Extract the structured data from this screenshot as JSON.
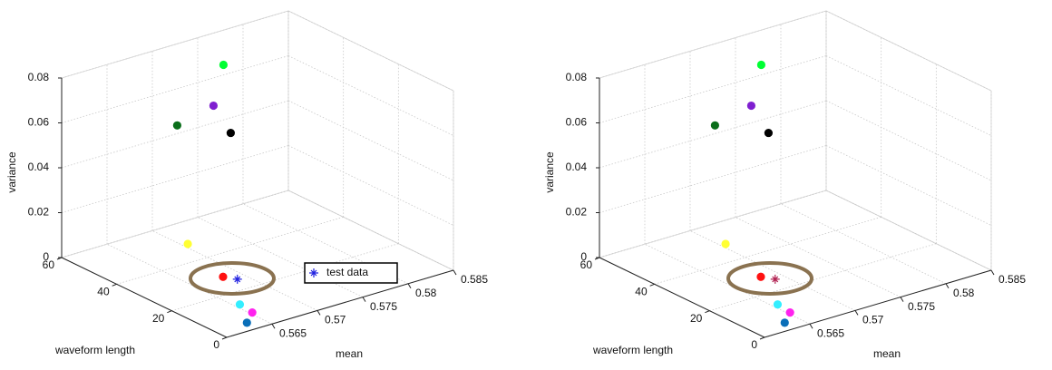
{
  "chart_data": [
    {
      "type": "scatter3d",
      "xlabel": "mean",
      "ylabel": "waveform length",
      "zlabel": "variance",
      "xlim": [
        0.56,
        0.585
      ],
      "xticks": [
        0.565,
        0.57,
        0.575,
        0.58,
        0.585
      ],
      "ylim": [
        0,
        60
      ],
      "yticks": [
        0,
        20,
        40,
        60
      ],
      "zlim": [
        0,
        0.08
      ],
      "zticks": [
        0,
        0.02,
        0.04,
        0.06,
        0.08
      ],
      "grid": true,
      "legend": "center right",
      "series": [
        {
          "marker": "circle",
          "colors": [
            "#00ff33",
            "#7f1fd0",
            "#0a6e1a",
            "#000000",
            "#ffff33",
            "#ff1111",
            "#33eeff",
            "#ff22ee",
            "#0a6eb8"
          ],
          "x": [
            0.5742,
            0.5731,
            0.5691,
            0.575,
            0.5696,
            0.5673,
            0.5646,
            0.5643,
            0.5625
          ],
          "y": [
            48,
            48,
            48,
            48,
            45.8,
            25.4,
            10.4,
            4.9,
            0.9
          ],
          "z": [
            0.076,
            0.0591,
            0.0551,
            0.0447,
            0.003,
            0.0032,
            0.003,
            0.003,
            0.003
          ]
        },
        {
          "name": "test data",
          "marker": "star",
          "color": "#2020e0",
          "x": [
            0.568
          ],
          "y": [
            22.5
          ],
          "z": [
            0.003
          ]
        }
      ]
    },
    {
      "type": "scatter3d",
      "xlabel": "mean",
      "ylabel": "waveform length",
      "zlabel": "variance",
      "xlim": [
        0.56,
        0.585
      ],
      "xticks": [
        0.565,
        0.57,
        0.575,
        0.58,
        0.585
      ],
      "ylim": [
        0,
        60
      ],
      "yticks": [
        0,
        20,
        40,
        60
      ],
      "zlim": [
        0,
        0.08
      ],
      "zticks": [
        0,
        0.02,
        0.04,
        0.06,
        0.08
      ],
      "grid": true,
      "series": [
        {
          "marker": "circle",
          "colors": [
            "#00ff33",
            "#7f1fd0",
            "#0a6e1a",
            "#000000",
            "#ffff33",
            "#ff1111",
            "#33eeff",
            "#ff22ee",
            "#0a6eb8"
          ],
          "x": [
            0.5742,
            0.5731,
            0.5691,
            0.575,
            0.5696,
            0.5673,
            0.5646,
            0.5643,
            0.5625
          ],
          "y": [
            48,
            48,
            48,
            48,
            45.8,
            25.4,
            10.4,
            4.9,
            0.9
          ],
          "z": [
            0.076,
            0.0591,
            0.0551,
            0.0447,
            0.003,
            0.0032,
            0.003,
            0.003,
            0.003
          ]
        },
        {
          "marker": "star",
          "color": "#b02050",
          "x": [
            0.568
          ],
          "y": [
            22.5
          ],
          "z": [
            0.003
          ]
        }
      ]
    }
  ]
}
